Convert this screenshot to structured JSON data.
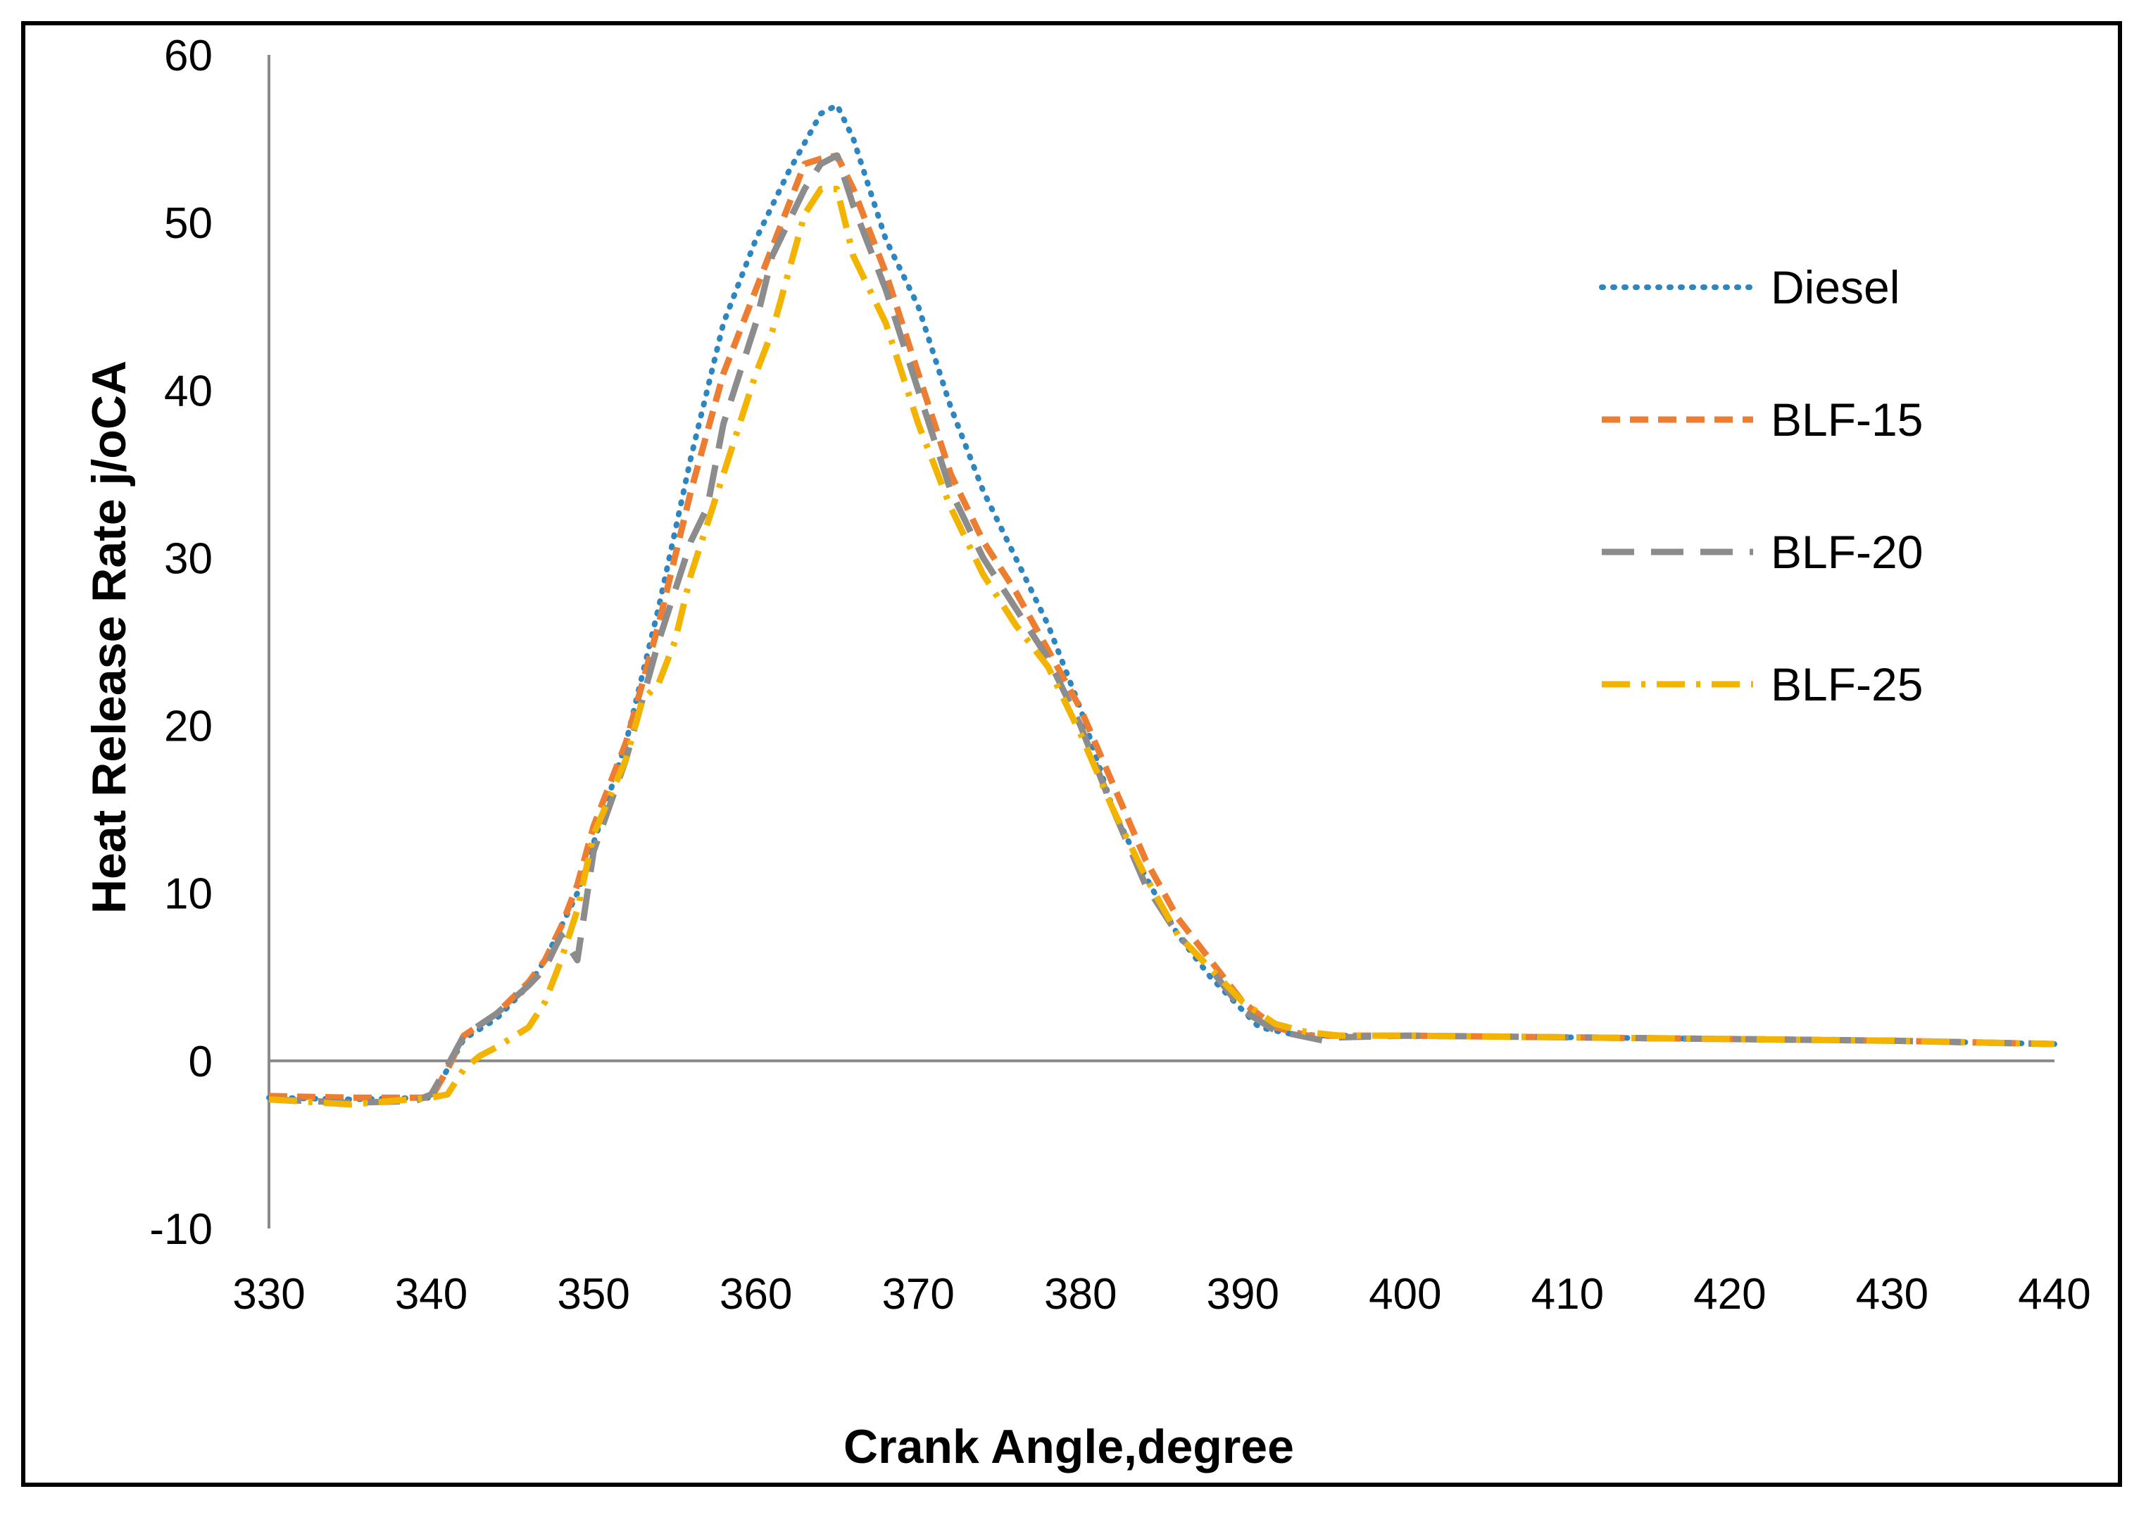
{
  "chart_data": {
    "type": "line",
    "title": "",
    "xlabel": "Crank Angle,degree",
    "ylabel": "Heat Release Rate j/oCA",
    "xlim": [
      330,
      440
    ],
    "ylim": [
      -10,
      60
    ],
    "xticks": [
      "330",
      "340",
      "350",
      "360",
      "370",
      "380",
      "390",
      "400",
      "410",
      "420",
      "430",
      "440"
    ],
    "yticks": [
      "60",
      "50",
      "40",
      "30",
      "20",
      "10",
      "0",
      "-10"
    ],
    "legend_position": "right",
    "series": [
      {
        "name": "Diesel",
        "color": "#2E86C1",
        "style": "dotted",
        "points": [
          [
            330,
            -2.2
          ],
          [
            335,
            -2.3
          ],
          [
            340,
            -2.2
          ],
          [
            341,
            -0.5
          ],
          [
            342,
            1.3
          ],
          [
            344,
            2.5
          ],
          [
            346,
            4.5
          ],
          [
            347,
            6
          ],
          [
            348,
            8
          ],
          [
            349,
            10
          ],
          [
            350,
            13
          ],
          [
            352,
            19
          ],
          [
            354,
            27
          ],
          [
            356,
            36
          ],
          [
            358,
            44
          ],
          [
            360,
            49
          ],
          [
            362,
            53
          ],
          [
            364,
            56.5
          ],
          [
            365,
            57
          ],
          [
            366,
            55
          ],
          [
            368,
            49
          ],
          [
            370,
            45
          ],
          [
            372,
            39
          ],
          [
            374,
            34
          ],
          [
            376,
            30
          ],
          [
            378,
            26
          ],
          [
            380,
            21
          ],
          [
            382,
            15
          ],
          [
            384,
            11
          ],
          [
            386,
            7.5
          ],
          [
            388,
            5
          ],
          [
            390,
            3
          ],
          [
            391,
            2
          ],
          [
            393,
            1.6
          ],
          [
            395,
            1.5
          ],
          [
            400,
            1.5
          ],
          [
            410,
            1.4
          ],
          [
            420,
            1.3
          ],
          [
            430,
            1.2
          ],
          [
            440,
            1.0
          ]
        ]
      },
      {
        "name": "BLF-15",
        "color": "#ED7D31",
        "style": "dashed",
        "points": [
          [
            330,
            -2.1
          ],
          [
            335,
            -2.2
          ],
          [
            340,
            -2.2
          ],
          [
            341,
            -0.5
          ],
          [
            342,
            1.5
          ],
          [
            344,
            2.8
          ],
          [
            346,
            4.7
          ],
          [
            347,
            6
          ],
          [
            348,
            8
          ],
          [
            349,
            10.5
          ],
          [
            350,
            14
          ],
          [
            352,
            19
          ],
          [
            354,
            26
          ],
          [
            356,
            34
          ],
          [
            358,
            41
          ],
          [
            360,
            46
          ],
          [
            362,
            51
          ],
          [
            363,
            53.5
          ],
          [
            364,
            53.8
          ],
          [
            365,
            54
          ],
          [
            366,
            52
          ],
          [
            368,
            47
          ],
          [
            370,
            41
          ],
          [
            372,
            35
          ],
          [
            374,
            31
          ],
          [
            376,
            28
          ],
          [
            378,
            24.5
          ],
          [
            380,
            21
          ],
          [
            382,
            16.5
          ],
          [
            384,
            12
          ],
          [
            386,
            8.5
          ],
          [
            388,
            6
          ],
          [
            390,
            3.5
          ],
          [
            392,
            2
          ],
          [
            394,
            1.5
          ],
          [
            396,
            1.5
          ],
          [
            400,
            1.5
          ],
          [
            410,
            1.4
          ],
          [
            420,
            1.3
          ],
          [
            430,
            1.2
          ],
          [
            440,
            1.0
          ]
        ]
      },
      {
        "name": "BLF-20",
        "color": "#8C8C8C",
        "style": "longdash",
        "points": [
          [
            330,
            -2.3
          ],
          [
            335,
            -2.5
          ],
          [
            339,
            -2.4
          ],
          [
            340,
            -2.0
          ],
          [
            341,
            -0.3
          ],
          [
            342,
            1.5
          ],
          [
            344,
            2.8
          ],
          [
            346,
            4.5
          ],
          [
            347,
            5.5
          ],
          [
            348,
            7.5
          ],
          [
            349,
            6
          ],
          [
            350,
            12.5
          ],
          [
            352,
            18
          ],
          [
            354,
            25
          ],
          [
            356,
            31
          ],
          [
            357,
            33
          ],
          [
            358,
            38
          ],
          [
            360,
            44
          ],
          [
            361,
            48
          ],
          [
            362,
            50
          ],
          [
            363,
            52
          ],
          [
            364,
            53.5
          ],
          [
            365,
            54
          ],
          [
            366,
            51
          ],
          [
            368,
            46
          ],
          [
            370,
            40
          ],
          [
            372,
            34
          ],
          [
            374,
            30
          ],
          [
            376,
            27
          ],
          [
            378,
            24
          ],
          [
            380,
            20
          ],
          [
            382,
            15
          ],
          [
            384,
            10.5
          ],
          [
            386,
            7.5
          ],
          [
            388,
            5.5
          ],
          [
            390,
            3
          ],
          [
            392,
            1.8
          ],
          [
            394,
            1.4
          ],
          [
            395,
            1.2
          ],
          [
            396,
            1.4
          ],
          [
            400,
            1.5
          ],
          [
            410,
            1.4
          ],
          [
            420,
            1.3
          ],
          [
            430,
            1.2
          ],
          [
            440,
            1.0
          ]
        ]
      },
      {
        "name": "BLF-25",
        "color": "#F2B400",
        "style": "dashdot",
        "points": [
          [
            330,
            -2.3
          ],
          [
            335,
            -2.6
          ],
          [
            340,
            -2.2
          ],
          [
            341,
            -2.0
          ],
          [
            342,
            -0.5
          ],
          [
            343,
            0.3
          ],
          [
            344,
            0.8
          ],
          [
            346,
            2
          ],
          [
            347,
            3.5
          ],
          [
            348,
            6
          ],
          [
            349,
            9
          ],
          [
            350,
            13.5
          ],
          [
            352,
            18
          ],
          [
            353,
            21.5
          ],
          [
            354,
            22.5
          ],
          [
            355,
            25
          ],
          [
            356,
            29
          ],
          [
            358,
            35
          ],
          [
            360,
            41
          ],
          [
            361,
            43.5
          ],
          [
            362,
            47
          ],
          [
            363,
            50.5
          ],
          [
            364,
            52
          ],
          [
            365,
            52
          ],
          [
            366,
            48
          ],
          [
            368,
            44
          ],
          [
            370,
            38
          ],
          [
            372,
            33
          ],
          [
            374,
            29
          ],
          [
            376,
            26
          ],
          [
            378,
            23.5
          ],
          [
            380,
            19.5
          ],
          [
            382,
            15
          ],
          [
            384,
            11
          ],
          [
            386,
            7.5
          ],
          [
            388,
            5.5
          ],
          [
            390,
            3.5
          ],
          [
            392,
            2.2
          ],
          [
            394,
            1.7
          ],
          [
            396,
            1.5
          ],
          [
            400,
            1.5
          ],
          [
            410,
            1.4
          ],
          [
            420,
            1.3
          ],
          [
            430,
            1.2
          ],
          [
            440,
            1.0
          ]
        ]
      }
    ]
  }
}
